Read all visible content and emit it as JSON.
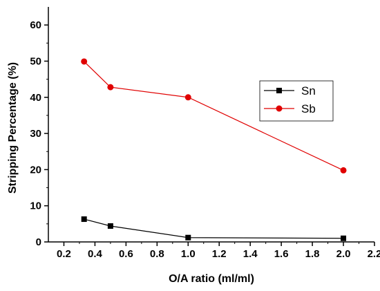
{
  "chart_data": {
    "type": "line",
    "title": "",
    "xlabel": "O/A ratio (ml/ml)",
    "ylabel": "Stripping Percentage (%)",
    "xlim": [
      0.1,
      2.2
    ],
    "ylim": [
      0,
      65
    ],
    "xticks": [
      0.2,
      0.4,
      0.6,
      0.8,
      1.0,
      1.2,
      1.4,
      1.6,
      1.8,
      2.0,
      2.2
    ],
    "xtick_labels": [
      "0.2",
      "0.4",
      "0.6",
      "0.8",
      "1.0",
      "1.2",
      "1.4",
      "1.6",
      "1.8",
      "2.0",
      "2.2"
    ],
    "yticks": [
      0,
      10,
      20,
      30,
      40,
      50,
      60
    ],
    "ytick_labels": [
      "0",
      "10",
      "20",
      "30",
      "40",
      "50",
      "60"
    ],
    "grid": false,
    "legend_position": "center-right",
    "series": [
      {
        "name": "Sn",
        "color": "#000000",
        "marker": "square",
        "x": [
          0.33,
          0.5,
          1.0,
          2.0
        ],
        "y": [
          6.3,
          4.4,
          1.2,
          1.0
        ]
      },
      {
        "name": "Sb",
        "color": "#e00000",
        "marker": "circle",
        "x": [
          0.33,
          0.5,
          1.0,
          2.0
        ],
        "y": [
          49.9,
          42.8,
          40.0,
          19.8
        ]
      }
    ]
  }
}
